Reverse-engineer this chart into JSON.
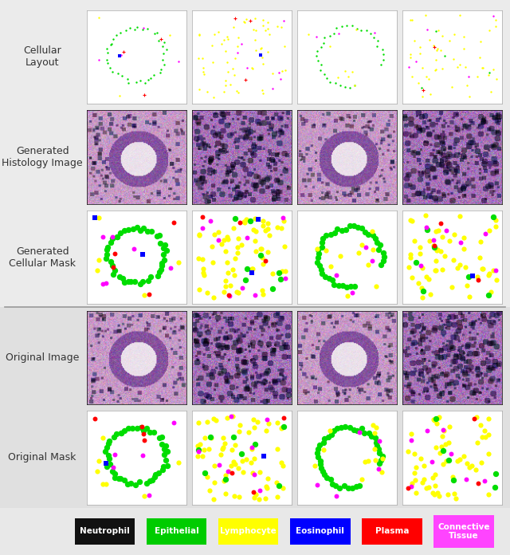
{
  "background_color": "#e8e8e8",
  "row_labels": [
    "Cellular\nLayout",
    "Generated\nHistology Image",
    "Generated\nCellular Mask",
    "Original Image",
    "Original Mask"
  ],
  "row_label_fontsize": 9,
  "num_cols": 4,
  "legend_items": [
    {
      "label": "Neutrophil",
      "color": "#111111"
    },
    {
      "label": "Epithelial",
      "color": "#00cc00"
    },
    {
      "label": "Lymphocyte",
      "color": "#ffff00"
    },
    {
      "label": "Eosinophil",
      "color": "#0000ff"
    },
    {
      "label": "Plasma",
      "color": "#ff0000"
    },
    {
      "label": "Connective\nTissue",
      "color": "#ff44ff"
    }
  ],
  "figsize": [
    6.4,
    6.96
  ],
  "dpi": 100,
  "separator_color": "#999999",
  "separator_lw": 1.2,
  "top_bg": "#ebebeb",
  "bottom_bg": "#e0e0e0"
}
